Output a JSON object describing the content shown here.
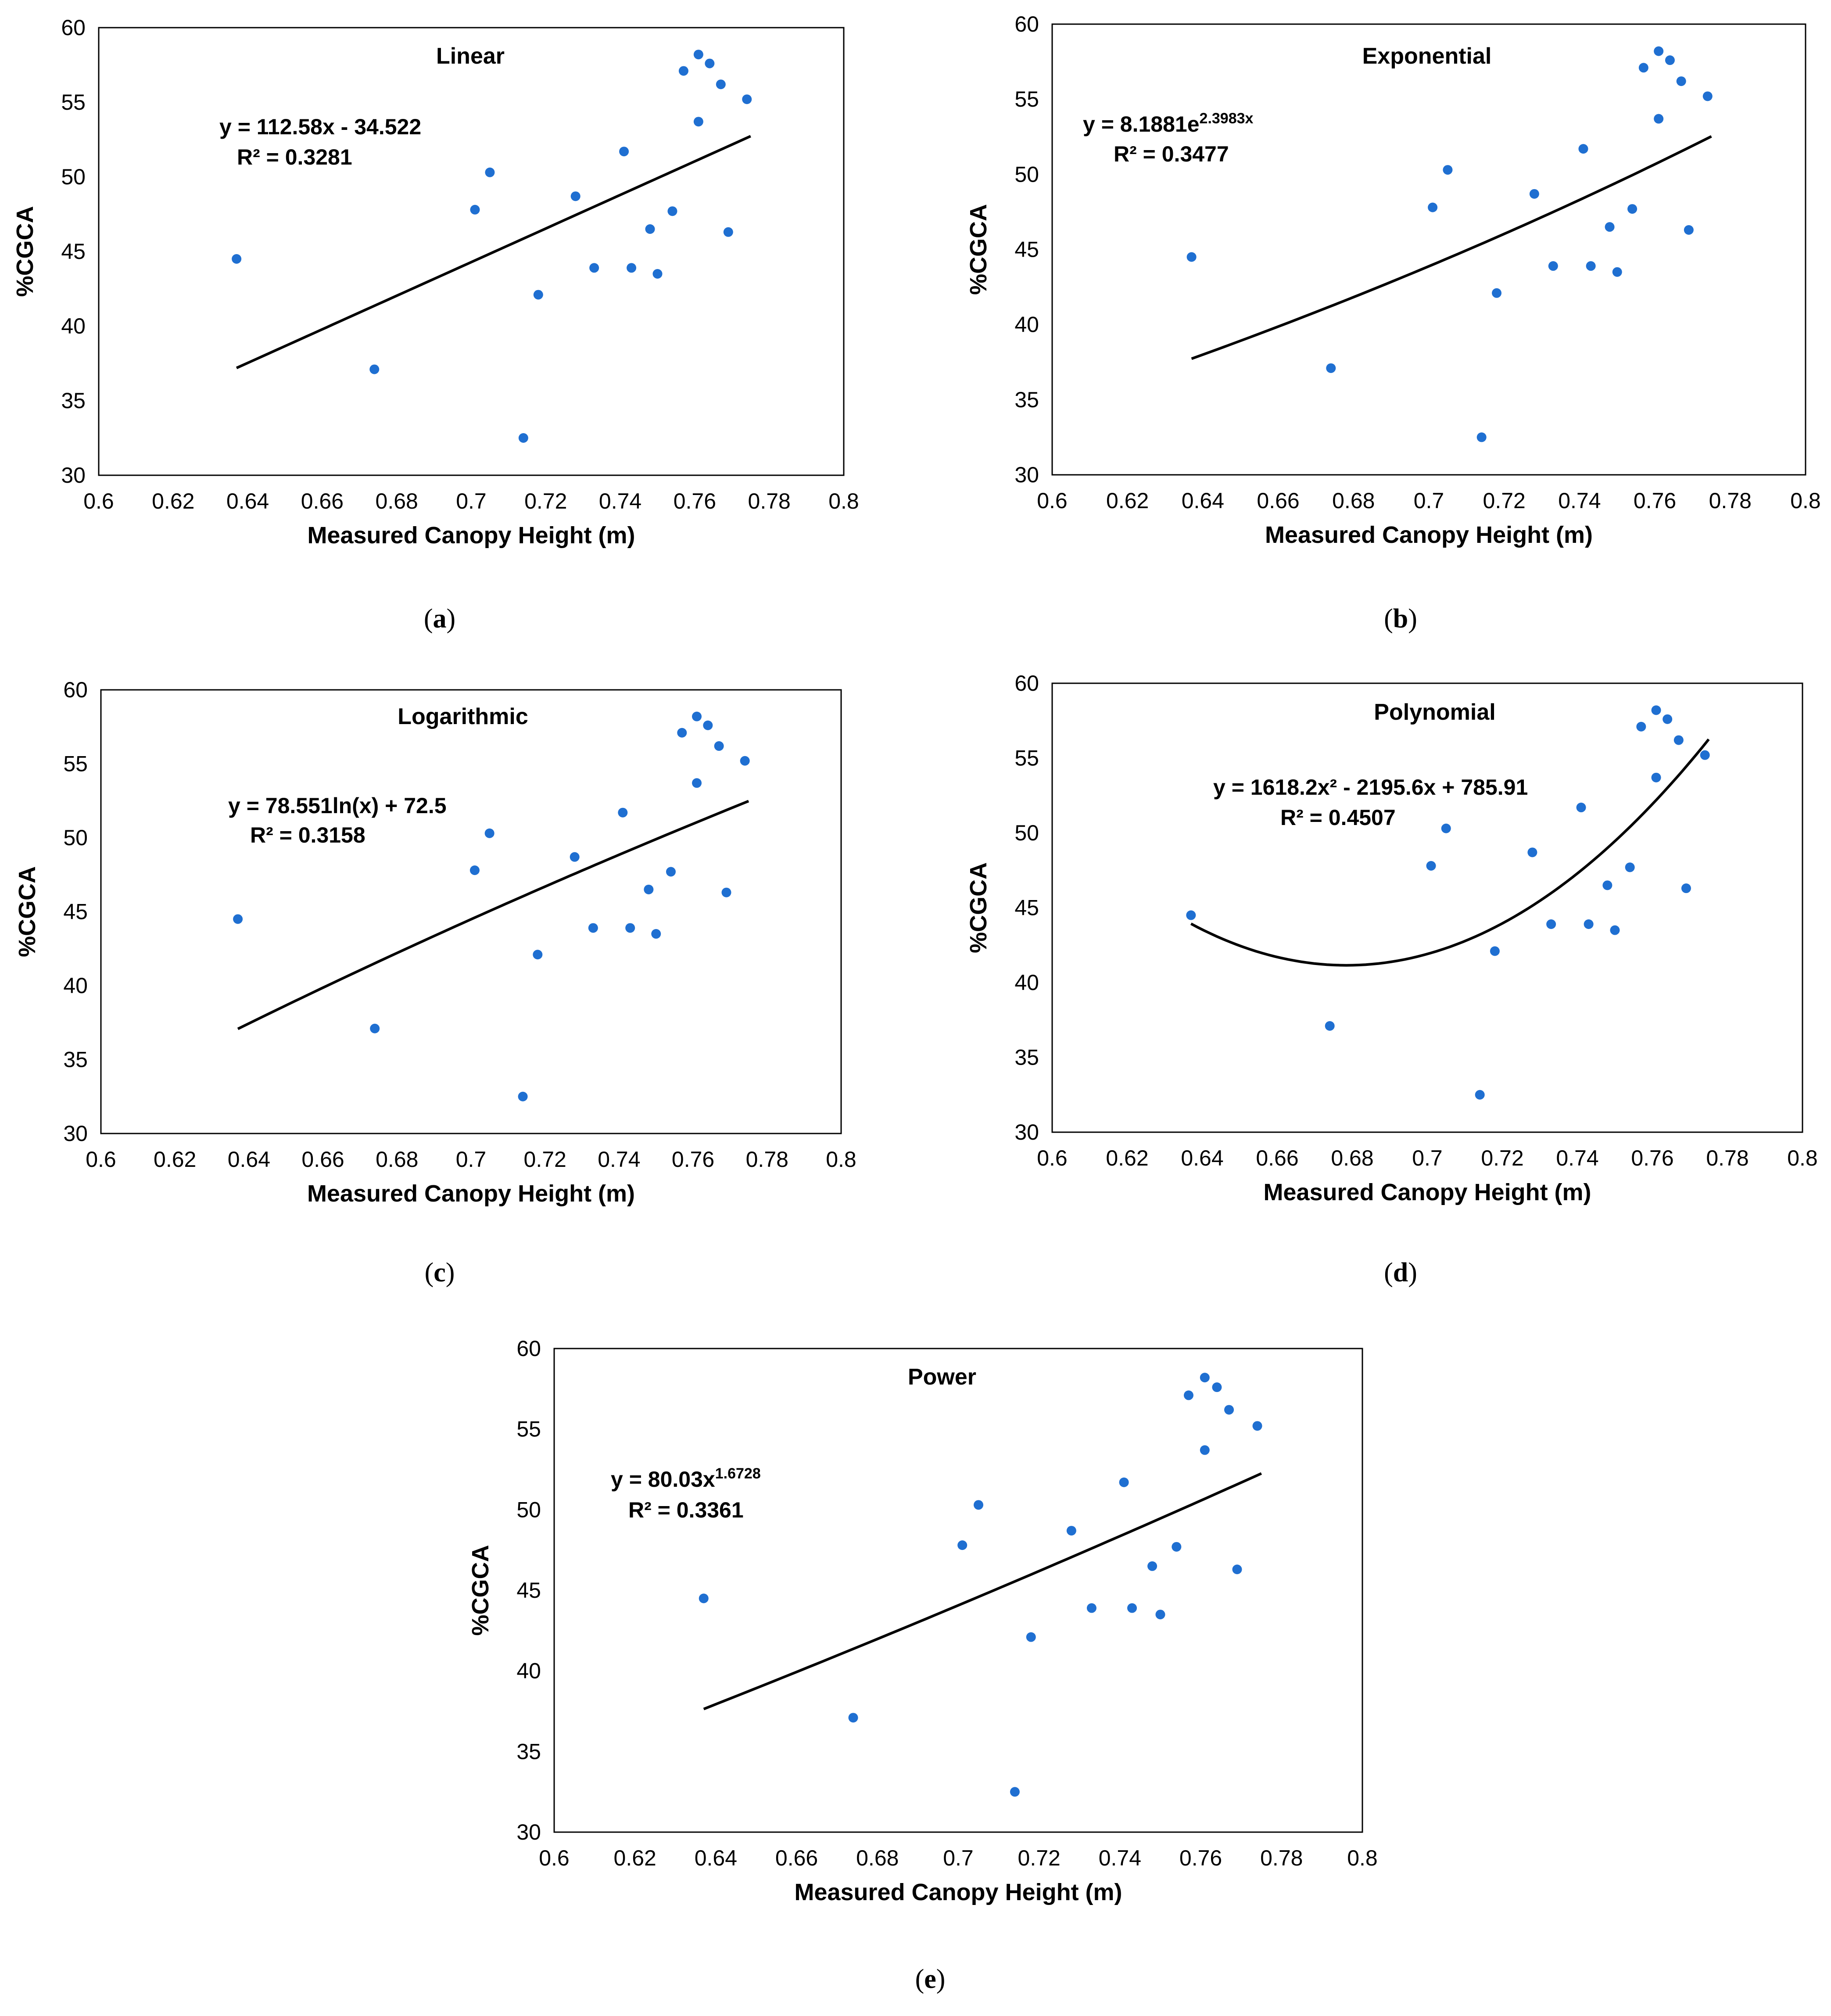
{
  "figure": {
    "point_color": "#1f6fd1",
    "line_color": "#000000",
    "tick_label_color": "#000000"
  },
  "chart_data": [
    {
      "id": "a",
      "type": "scatter",
      "panel_label": "(a)",
      "title": "Linear",
      "xlabel": "Measured Canopy Height (m)",
      "ylabel": "%CGCA",
      "xlim": [
        0.6,
        0.8
      ],
      "ylim": [
        30,
        60
      ],
      "xticks": [
        "0.6",
        "0.62",
        "0.64",
        "0.66",
        "0.68",
        "0.7",
        "0.72",
        "0.74",
        "0.76",
        "0.78",
        "0.8"
      ],
      "yticks": [
        "30",
        "35",
        "40",
        "45",
        "50",
        "55",
        "60"
      ],
      "equation": "y = 112.58x - 34.522",
      "r2": "R² = 0.3281",
      "trendline": {
        "model": "linear",
        "coefficients": [
          112.58,
          -34.522
        ],
        "x_range": [
          0.637,
          0.775
        ]
      },
      "points": [
        {
          "x": 0.637,
          "y": 44.5
        },
        {
          "x": 0.674,
          "y": 37.1
        },
        {
          "x": 0.701,
          "y": 47.8
        },
        {
          "x": 0.705,
          "y": 50.3
        },
        {
          "x": 0.714,
          "y": 32.5
        },
        {
          "x": 0.718,
          "y": 42.1
        },
        {
          "x": 0.728,
          "y": 48.7
        },
        {
          "x": 0.733,
          "y": 43.9
        },
        {
          "x": 0.741,
          "y": 51.7
        },
        {
          "x": 0.743,
          "y": 43.9
        },
        {
          "x": 0.748,
          "y": 46.5
        },
        {
          "x": 0.75,
          "y": 43.5
        },
        {
          "x": 0.754,
          "y": 47.7
        },
        {
          "x": 0.757,
          "y": 57.1
        },
        {
          "x": 0.761,
          "y": 53.7
        },
        {
          "x": 0.761,
          "y": 58.2
        },
        {
          "x": 0.764,
          "y": 57.6
        },
        {
          "x": 0.767,
          "y": 56.2
        },
        {
          "x": 0.769,
          "y": 46.3
        },
        {
          "x": 0.774,
          "y": 55.2
        }
      ]
    },
    {
      "id": "b",
      "type": "scatter",
      "panel_label": "(b)",
      "title": "Exponential",
      "xlabel": "Measured Canopy Height (m)",
      "ylabel": "%CGCA",
      "xlim": [
        0.6,
        0.8
      ],
      "ylim": [
        30,
        60
      ],
      "xticks": [
        "0.6",
        "0.62",
        "0.64",
        "0.66",
        "0.68",
        "0.7",
        "0.72",
        "0.74",
        "0.76",
        "0.78",
        "0.8"
      ],
      "yticks": [
        "30",
        "35",
        "40",
        "45",
        "50",
        "55",
        "60"
      ],
      "equation": "y = 8.1881e",
      "equation_sup": "2.3983x",
      "r2": "R² = 0.3477",
      "trendline": {
        "model": "exponential",
        "coefficients": [
          8.1881,
          2.3983
        ],
        "x_range": [
          0.637,
          0.775
        ]
      },
      "points": [
        {
          "x": 0.637,
          "y": 44.5
        },
        {
          "x": 0.674,
          "y": 37.1
        },
        {
          "x": 0.701,
          "y": 47.8
        },
        {
          "x": 0.705,
          "y": 50.3
        },
        {
          "x": 0.714,
          "y": 32.5
        },
        {
          "x": 0.718,
          "y": 42.1
        },
        {
          "x": 0.728,
          "y": 48.7
        },
        {
          "x": 0.733,
          "y": 43.9
        },
        {
          "x": 0.741,
          "y": 51.7
        },
        {
          "x": 0.743,
          "y": 43.9
        },
        {
          "x": 0.748,
          "y": 46.5
        },
        {
          "x": 0.75,
          "y": 43.5
        },
        {
          "x": 0.754,
          "y": 47.7
        },
        {
          "x": 0.757,
          "y": 57.1
        },
        {
          "x": 0.761,
          "y": 53.7
        },
        {
          "x": 0.761,
          "y": 58.2
        },
        {
          "x": 0.764,
          "y": 57.6
        },
        {
          "x": 0.767,
          "y": 56.2
        },
        {
          "x": 0.769,
          "y": 46.3
        },
        {
          "x": 0.774,
          "y": 55.2
        }
      ]
    },
    {
      "id": "c",
      "type": "scatter",
      "panel_label": "(c)",
      "title": "Logarithmic",
      "xlabel": "Measured Canopy Height (m)",
      "ylabel": "%CGCA",
      "xlim": [
        0.6,
        0.8
      ],
      "ylim": [
        30,
        60
      ],
      "xticks": [
        "0.6",
        "0.62",
        "0.64",
        "0.66",
        "0.68",
        "0.7",
        "0.72",
        "0.74",
        "0.76",
        "0.78",
        "0.8"
      ],
      "yticks": [
        "30",
        "35",
        "40",
        "45",
        "50",
        "55",
        "60"
      ],
      "equation": "y = 78.551ln(x)  + 72.5",
      "r2": "R² = 0.3158",
      "trendline": {
        "model": "logarithmic",
        "coefficients": [
          78.551,
          72.5
        ],
        "x_range": [
          0.637,
          0.775
        ]
      },
      "points": [
        {
          "x": 0.637,
          "y": 44.5
        },
        {
          "x": 0.674,
          "y": 37.1
        },
        {
          "x": 0.701,
          "y": 47.8
        },
        {
          "x": 0.705,
          "y": 50.3
        },
        {
          "x": 0.714,
          "y": 32.5
        },
        {
          "x": 0.718,
          "y": 42.1
        },
        {
          "x": 0.728,
          "y": 48.7
        },
        {
          "x": 0.733,
          "y": 43.9
        },
        {
          "x": 0.741,
          "y": 51.7
        },
        {
          "x": 0.743,
          "y": 43.9
        },
        {
          "x": 0.748,
          "y": 46.5
        },
        {
          "x": 0.75,
          "y": 43.5
        },
        {
          "x": 0.754,
          "y": 47.7
        },
        {
          "x": 0.757,
          "y": 57.1
        },
        {
          "x": 0.761,
          "y": 53.7
        },
        {
          "x": 0.761,
          "y": 58.2
        },
        {
          "x": 0.764,
          "y": 57.6
        },
        {
          "x": 0.767,
          "y": 56.2
        },
        {
          "x": 0.769,
          "y": 46.3
        },
        {
          "x": 0.774,
          "y": 55.2
        }
      ]
    },
    {
      "id": "d",
      "type": "scatter",
      "panel_label": "(d)",
      "title": "Polynomial",
      "xlabel": "Measured Canopy Height (m)",
      "ylabel": "%CGCA",
      "xlim": [
        0.6,
        0.8
      ],
      "ylim": [
        30,
        60
      ],
      "xticks": [
        "0.6",
        "0.62",
        "0.64",
        "0.66",
        "0.68",
        "0.7",
        "0.72",
        "0.74",
        "0.76",
        "0.78",
        "0.8"
      ],
      "yticks": [
        "30",
        "35",
        "40",
        "45",
        "50",
        "55",
        "60"
      ],
      "equation": "y = 1618.2x² - 2195.6x + 785.91",
      "r2": "R² = 0.4507",
      "trendline": {
        "model": "polynomial",
        "coefficients": [
          1618.2,
          -2195.6,
          785.91
        ],
        "x_range": [
          0.637,
          0.775
        ]
      },
      "points": [
        {
          "x": 0.637,
          "y": 44.5
        },
        {
          "x": 0.674,
          "y": 37.1
        },
        {
          "x": 0.701,
          "y": 47.8
        },
        {
          "x": 0.705,
          "y": 50.3
        },
        {
          "x": 0.714,
          "y": 32.5
        },
        {
          "x": 0.718,
          "y": 42.1
        },
        {
          "x": 0.728,
          "y": 48.7
        },
        {
          "x": 0.733,
          "y": 43.9
        },
        {
          "x": 0.741,
          "y": 51.7
        },
        {
          "x": 0.743,
          "y": 43.9
        },
        {
          "x": 0.748,
          "y": 46.5
        },
        {
          "x": 0.75,
          "y": 43.5
        },
        {
          "x": 0.754,
          "y": 47.7
        },
        {
          "x": 0.757,
          "y": 57.1
        },
        {
          "x": 0.761,
          "y": 53.7
        },
        {
          "x": 0.761,
          "y": 58.2
        },
        {
          "x": 0.764,
          "y": 57.6
        },
        {
          "x": 0.767,
          "y": 56.2
        },
        {
          "x": 0.769,
          "y": 46.3
        },
        {
          "x": 0.774,
          "y": 55.2
        }
      ]
    },
    {
      "id": "e",
      "type": "scatter",
      "panel_label": "(e)",
      "title": "Power",
      "xlabel": "Measured Canopy Height (m)",
      "ylabel": "%CGCA",
      "xlim": [
        0.6,
        0.8
      ],
      "ylim": [
        30,
        60
      ],
      "xticks": [
        "0.6",
        "0.62",
        "0.64",
        "0.66",
        "0.68",
        "0.7",
        "0.72",
        "0.74",
        "0.76",
        "0.78",
        "0.8"
      ],
      "yticks": [
        "30",
        "35",
        "40",
        "45",
        "50",
        "55",
        "60"
      ],
      "equation": "y = 80.03x",
      "equation_sup": "1.6728",
      "r2": "R² = 0.3361",
      "trendline": {
        "model": "power",
        "coefficients": [
          80.03,
          1.6728
        ],
        "x_range": [
          0.637,
          0.775
        ]
      },
      "points": [
        {
          "x": 0.637,
          "y": 44.5
        },
        {
          "x": 0.674,
          "y": 37.1
        },
        {
          "x": 0.701,
          "y": 47.8
        },
        {
          "x": 0.705,
          "y": 50.3
        },
        {
          "x": 0.714,
          "y": 32.5
        },
        {
          "x": 0.718,
          "y": 42.1
        },
        {
          "x": 0.728,
          "y": 48.7
        },
        {
          "x": 0.733,
          "y": 43.9
        },
        {
          "x": 0.741,
          "y": 51.7
        },
        {
          "x": 0.743,
          "y": 43.9
        },
        {
          "x": 0.748,
          "y": 46.5
        },
        {
          "x": 0.75,
          "y": 43.5
        },
        {
          "x": 0.754,
          "y": 47.7
        },
        {
          "x": 0.757,
          "y": 57.1
        },
        {
          "x": 0.761,
          "y": 53.7
        },
        {
          "x": 0.761,
          "y": 58.2
        },
        {
          "x": 0.764,
          "y": 57.6
        },
        {
          "x": 0.767,
          "y": 56.2
        },
        {
          "x": 0.769,
          "y": 46.3
        },
        {
          "x": 0.774,
          "y": 55.2
        }
      ]
    }
  ]
}
